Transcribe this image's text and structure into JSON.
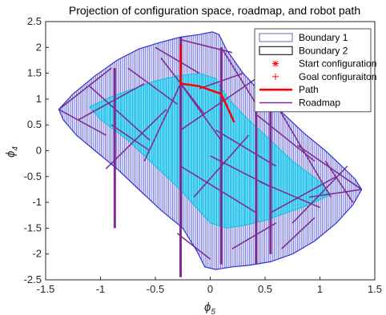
{
  "chart_data": {
    "type": "line",
    "title": "Projection of configuration space, roadmap, and robot path",
    "xlabel": "ϕ",
    "xlabel_sub": "5",
    "ylabel": "ϕ",
    "ylabel_sub": "4",
    "xlim": [
      -1.5,
      1.5
    ],
    "ylim": [
      -2.5,
      2.5
    ],
    "xticks": [
      -1.5,
      -1,
      -0.5,
      0,
      0.5,
      1,
      1.5
    ],
    "yticks": [
      -2.5,
      -2,
      -1.5,
      -1,
      -0.5,
      0,
      0.5,
      1,
      1.5,
      2,
      2.5
    ],
    "xtick_labels": [
      "-1.5",
      "-1",
      "-0.5",
      "0",
      "0.5",
      "1",
      "1.5"
    ],
    "ytick_labels": [
      "-2.5",
      "-2",
      "-1.5",
      "-1",
      "-0.5",
      "0",
      "0.5",
      "1",
      "1.5",
      "2",
      "2.5"
    ],
    "legend_position": "top-right",
    "legend": [
      {
        "label": "Boundary 1",
        "marker": "box",
        "color": "#6666cc"
      },
      {
        "label": "Boundary 2",
        "marker": "box",
        "color": "#000000"
      },
      {
        "label": "Start configuration",
        "marker": "asterisk",
        "color": "#ff0000"
      },
      {
        "label": "Goal configuraiton",
        "marker": "plus",
        "color": "#ff0000"
      },
      {
        "label": "Path",
        "marker": "line",
        "color": "#ff0000"
      },
      {
        "label": "Roadmap",
        "marker": "line",
        "color": "#7e2f8e"
      }
    ],
    "boundary1": {
      "color": "#3333cc",
      "x": [
        -1.38,
        -1.25,
        -1.05,
        -0.85,
        -0.65,
        -0.45,
        -0.27,
        -0.1,
        0.02,
        0.08,
        0.15,
        0.3,
        0.45,
        0.65,
        0.85,
        1.05,
        1.2,
        1.32,
        1.38,
        1.3,
        1.15,
        0.95,
        0.75,
        0.55,
        0.35,
        0.2,
        0.05,
        -0.05,
        -0.12,
        -0.25,
        -0.45,
        -0.65,
        -0.85,
        -1.05,
        -1.22,
        -1.34,
        -1.38
      ],
      "y": [
        0.8,
        1.1,
        1.45,
        1.75,
        1.97,
        2.1,
        2.2,
        2.25,
        2.3,
        2.25,
        1.95,
        1.5,
        1.15,
        0.75,
        0.35,
        0.0,
        -0.3,
        -0.55,
        -0.75,
        -1.05,
        -1.4,
        -1.75,
        -2.0,
        -2.15,
        -2.22,
        -2.25,
        -2.3,
        -2.25,
        -1.95,
        -1.5,
        -1.15,
        -0.75,
        -0.35,
        0.0,
        0.3,
        0.6,
        0.8
      ]
    },
    "boundary2": {
      "color": "#00e5ff",
      "x": [
        -1.1,
        -0.9,
        -0.7,
        -0.5,
        -0.3,
        -0.1,
        0.05,
        0.15,
        0.3,
        0.5,
        0.75,
        1.0,
        1.1,
        0.9,
        0.7,
        0.5,
        0.3,
        0.15,
        0.0,
        -0.15,
        -0.3,
        -0.5,
        -0.75,
        -1.0,
        -1.1
      ],
      "y": [
        0.85,
        1.05,
        1.2,
        1.35,
        1.45,
        1.5,
        1.4,
        1.05,
        0.7,
        0.3,
        -0.2,
        -0.6,
        -0.85,
        -1.05,
        -1.2,
        -1.35,
        -1.45,
        -1.5,
        -1.4,
        -1.05,
        -0.7,
        -0.3,
        0.2,
        0.6,
        0.85
      ]
    },
    "path": {
      "color": "#ff0000",
      "x": [
        -0.27,
        -0.27,
        -0.1,
        0.1,
        0.22
      ],
      "y": [
        2.05,
        1.3,
        1.25,
        1.1,
        0.55
      ]
    },
    "roadmap_vertical_segments": {
      "color": "#7e2f8e",
      "segments": [
        {
          "x": -0.27,
          "y": [
            -2.45,
            2.2
          ]
        },
        {
          "x": -0.87,
          "y": [
            -1.5,
            1.6
          ]
        },
        {
          "x": 0.1,
          "y": [
            -2.2,
            2.0
          ]
        },
        {
          "x": 0.42,
          "y": [
            -2.2,
            2.1
          ]
        },
        {
          "x": 0.55,
          "y": [
            -2.0,
            1.2
          ]
        }
      ]
    },
    "roadmap": {
      "color": "#7e2f8e",
      "segments": [
        {
          "x": [
            -1.38,
            -0.9
          ],
          "y": [
            0.8,
            1.6
          ]
        },
        {
          "x": [
            -1.38,
            -0.95
          ],
          "y": [
            0.8,
            0.3
          ]
        },
        {
          "x": [
            -1.2,
            -0.6
          ],
          "y": [
            0.6,
            1.3
          ]
        },
        {
          "x": [
            -1.1,
            -0.55
          ],
          "y": [
            1.25,
            0.2
          ]
        },
        {
          "x": [
            -0.95,
            -0.4
          ],
          "y": [
            -0.35,
            0.8
          ]
        },
        {
          "x": [
            -0.75,
            -0.3
          ],
          "y": [
            1.6,
            0.9
          ]
        },
        {
          "x": [
            -0.6,
            -0.27
          ],
          "y": [
            -0.2,
            1.3
          ]
        },
        {
          "x": [
            -0.5,
            -0.1
          ],
          "y": [
            2.0,
            1.5
          ]
        },
        {
          "x": [
            -0.27,
            0.1
          ],
          "y": [
            1.3,
            0.2
          ]
        },
        {
          "x": [
            -0.27,
            0.42
          ],
          "y": [
            0.4,
            1.4
          ]
        },
        {
          "x": [
            -0.27,
            0.42
          ],
          "y": [
            -0.3,
            -1.2
          ]
        },
        {
          "x": [
            -0.15,
            0.35
          ],
          "y": [
            -0.9,
            0.3
          ]
        },
        {
          "x": [
            -0.3,
            0.0
          ],
          "y": [
            -1.6,
            -2.1
          ]
        },
        {
          "x": [
            -0.1,
            0.3
          ],
          "y": [
            1.2,
            1.5
          ]
        },
        {
          "x": [
            0.0,
            0.55
          ],
          "y": [
            -0.1,
            -0.7
          ]
        },
        {
          "x": [
            0.05,
            0.6
          ],
          "y": [
            0.4,
            -0.3
          ]
        },
        {
          "x": [
            0.2,
            0.6
          ],
          "y": [
            -1.9,
            -1.4
          ]
        },
        {
          "x": [
            0.42,
            0.95
          ],
          "y": [
            0.7,
            -0.2
          ]
        },
        {
          "x": [
            0.45,
            1.0
          ],
          "y": [
            -0.6,
            -1.1
          ]
        },
        {
          "x": [
            0.55,
            1.15
          ],
          "y": [
            -1.2,
            -0.5
          ]
        },
        {
          "x": [
            0.6,
            1.1
          ],
          "y": [
            0.9,
            -0.9
          ]
        },
        {
          "x": [
            0.75,
            1.25
          ],
          "y": [
            -1.4,
            -0.3
          ]
        },
        {
          "x": [
            0.8,
            1.38
          ],
          "y": [
            0.1,
            -0.75
          ]
        },
        {
          "x": [
            0.9,
            1.38
          ],
          "y": [
            -0.9,
            -0.75
          ]
        },
        {
          "x": [
            1.05,
            1.3
          ],
          "y": [
            -0.2,
            -1.0
          ]
        },
        {
          "x": [
            0.65,
            0.95
          ],
          "y": [
            -1.9,
            -1.3
          ]
        },
        {
          "x": [
            -0.9,
            -0.55
          ],
          "y": [
            0.5,
            0.0
          ]
        },
        {
          "x": [
            -0.45,
            -0.05
          ],
          "y": [
            1.8,
            0.7
          ]
        },
        {
          "x": [
            -0.27,
            0.2
          ],
          "y": [
            2.15,
            1.9
          ]
        },
        {
          "x": [
            0.1,
            0.42
          ],
          "y": [
            2.0,
            0.9
          ]
        }
      ]
    }
  }
}
